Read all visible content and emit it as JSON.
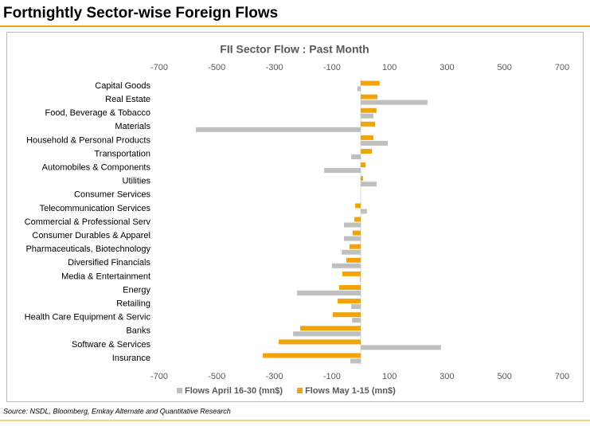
{
  "header": {
    "title": "Fortnightly Sector-wise Foreign Flows"
  },
  "chart_data": {
    "type": "hbar",
    "title": "FII Sector Flow : Past Month",
    "categories": [
      "Capital Goods",
      "Real Estate",
      "Food, Beverage & Tobacco",
      "Materials",
      "Household & Personal Products",
      "Transportation",
      "Automobiles & Components",
      "Utilities",
      "Consumer Services",
      "Telecommunication Services",
      "Commercial & Professional Serv",
      "Consumer Durables & Apparel",
      "Pharmaceuticals, Biotechnology",
      "Diversified Financials",
      "Media & Entertainment",
      "Energy",
      "Retailing",
      "Health Care Equipment & Servic",
      "Banks",
      "Software & Services",
      "Insurance"
    ],
    "series": [
      {
        "name": "Flows April 16-30  (mn$)",
        "color": "#bfbfbf",
        "values": [
          -11,
          232,
          44,
          -573,
          94,
          -33,
          -127,
          55,
          0,
          22,
          -58,
          -58,
          -66,
          -100,
          -3,
          -221,
          -33,
          -30,
          -235,
          279,
          -36
        ]
      },
      {
        "name": "Flows May 1-15  (mn$)",
        "color": "#f0a30a",
        "values": [
          66,
          58,
          55,
          50,
          44,
          39,
          17,
          8,
          0,
          -19,
          -22,
          -28,
          -39,
          -50,
          -64,
          -75,
          -80,
          -97,
          -210,
          -285,
          -340
        ]
      }
    ],
    "xlim": [
      -700,
      700
    ],
    "xticks": [
      -700,
      -500,
      -300,
      -100,
      100,
      300,
      500,
      700
    ],
    "legend": "bottom"
  },
  "footer": {
    "source": "Source: NSDL, Bloomberg, Emkay Alternate and Quantitative Research"
  }
}
